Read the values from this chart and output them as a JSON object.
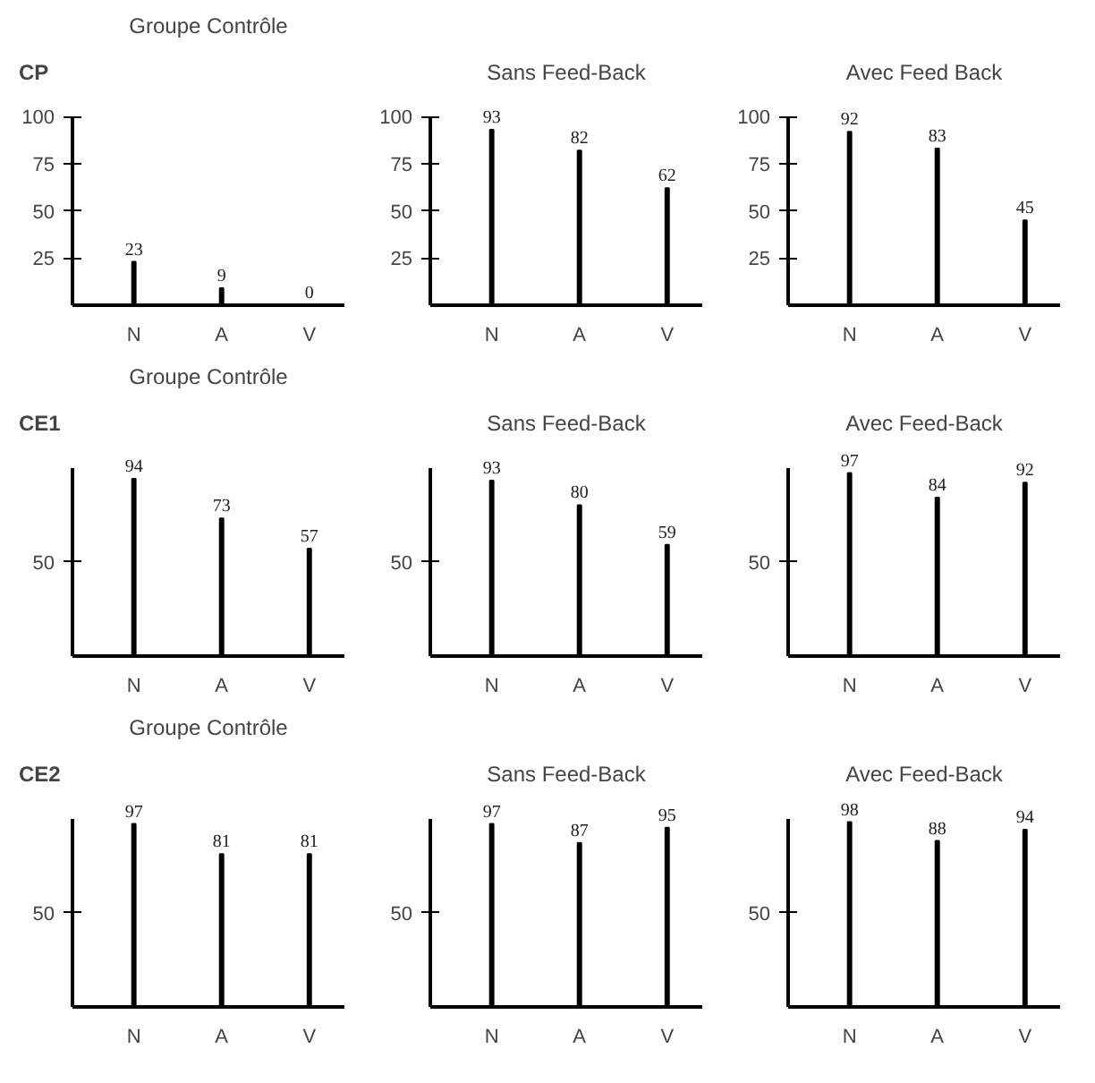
{
  "chart_data": [
    {
      "type": "bar",
      "title": "Groupe Contrôle",
      "annotations": [
        "CP"
      ],
      "categories": [
        "N",
        "A",
        "V"
      ],
      "values": [
        23,
        9,
        0
      ],
      "color": "#000000",
      "ylim": [
        0,
        100
      ],
      "yticks": [
        25,
        50,
        75,
        100
      ],
      "data_labels": true,
      "grid": false
    },
    {
      "type": "bar",
      "title": "Sans Feed-Back",
      "categories": [
        "N",
        "A",
        "V"
      ],
      "values": [
        93,
        82,
        62
      ],
      "color": "#000000",
      "ylim": [
        0,
        100
      ],
      "yticks": [
        25,
        50,
        75,
        100
      ],
      "data_labels": true,
      "grid": false
    },
    {
      "type": "bar",
      "title": "Avec Feed Back",
      "categories": [
        "N",
        "A",
        "V"
      ],
      "values": [
        92,
        83,
        45
      ],
      "color": "#000000",
      "ylim": [
        0,
        100
      ],
      "yticks": [
        25,
        50,
        75,
        100
      ],
      "data_labels": true,
      "grid": false
    },
    {
      "type": "bar",
      "title": "Groupe Contrôle",
      "annotations": [
        "CE1"
      ],
      "categories": [
        "N",
        "A",
        "V"
      ],
      "values": [
        94,
        73,
        57
      ],
      "color": "#000000",
      "ylim": [
        0,
        100
      ],
      "yticks": [
        50
      ],
      "data_labels": true,
      "grid": false
    },
    {
      "type": "bar",
      "title": "Sans Feed-Back",
      "categories": [
        "N",
        "A",
        "V"
      ],
      "values": [
        93,
        80,
        59
      ],
      "color": "#000000",
      "ylim": [
        0,
        100
      ],
      "yticks": [
        50
      ],
      "data_labels": true,
      "grid": false
    },
    {
      "type": "bar",
      "title": "Avec Feed-Back",
      "categories": [
        "N",
        "A",
        "V"
      ],
      "values": [
        97,
        84,
        92
      ],
      "color": "#000000",
      "ylim": [
        0,
        100
      ],
      "yticks": [
        50
      ],
      "data_labels": true,
      "grid": false
    },
    {
      "type": "bar",
      "title": "Groupe Contrôle",
      "annotations": [
        "CE2"
      ],
      "categories": [
        "N",
        "A",
        "V"
      ],
      "values": [
        97,
        81,
        81
      ],
      "color": "#000000",
      "ylim": [
        0,
        100
      ],
      "yticks": [
        50
      ],
      "data_labels": true,
      "grid": false
    },
    {
      "type": "bar",
      "title": "Sans Feed-Back",
      "categories": [
        "N",
        "A",
        "V"
      ],
      "values": [
        97,
        87,
        95
      ],
      "color": "#000000",
      "ylim": [
        0,
        100
      ],
      "yticks": [
        50
      ],
      "data_labels": true,
      "grid": false
    },
    {
      "type": "bar",
      "title": "Avec Feed-Back",
      "categories": [
        "N",
        "A",
        "V"
      ],
      "values": [
        98,
        88,
        94
      ],
      "color": "#000000",
      "ylim": [
        0,
        100
      ],
      "yticks": [
        50
      ],
      "data_labels": true,
      "grid": false
    }
  ]
}
